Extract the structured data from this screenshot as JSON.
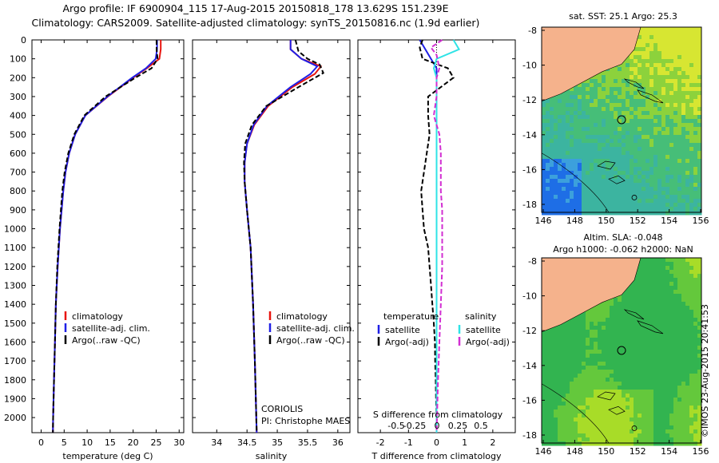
{
  "header": {
    "line1": "Argo profile: IF 6900904_115 17-Aug-2015 20150818_178 13.629S 151.239E",
    "line2": "Climatology: CARS2009. Satellite-adjusted climatology: synTS_20150816.nc (1.9d earlier)"
  },
  "map_top": {
    "title": "sat. SST: 25.1 Argo: 25.3",
    "x_ticks": [
      "146",
      "148",
      "150",
      "152",
      "154",
      "156"
    ],
    "y_ticks": [
      "-8",
      "-10",
      "-12",
      "-14",
      "-16",
      "-18"
    ]
  },
  "map_bottom": {
    "title1": "Altim. SLA: -0.048",
    "title2": "Argo h1000: -0.062 h2000: NaN",
    "x_ticks": [
      "146",
      "148",
      "150",
      "152",
      "154",
      "156"
    ],
    "y_ticks": [
      "-8",
      "-10",
      "-12",
      "-14",
      "-16",
      "-18"
    ]
  },
  "credit": "©IMOS 23-Aug-2015 20:41:53",
  "colors": {
    "climatology": "#e8140e",
    "satellite_adj": "#1f1fe6",
    "argo": "#000000",
    "satellite_s": "#2fe3e6",
    "argo_s": "#d22fd2",
    "land": "#f5b28c",
    "ocean": "#32cd64"
  },
  "chart_data": [
    {
      "type": "line",
      "xlabel": "temperature (deg C)",
      "ylabel": "",
      "xlim": [
        -2,
        31
      ],
      "ylim": [
        2080,
        0
      ],
      "x_ticks": [
        "0",
        "5",
        "10",
        "15",
        "20",
        "25",
        "30"
      ],
      "y_ticks": [
        "0",
        "100",
        "200",
        "300",
        "400",
        "500",
        "600",
        "700",
        "800",
        "900",
        "1000",
        "1100",
        "1200",
        "1300",
        "1400",
        "1500",
        "1600",
        "1700",
        "1800",
        "1900",
        "2000"
      ],
      "legend_position": "lower-left",
      "series": [
        {
          "name": "climatology",
          "depth": [
            0,
            50,
            100,
            150,
            200,
            300,
            400,
            500,
            600,
            700,
            800,
            1000,
            1200,
            1400,
            1600,
            1800,
            2000,
            2080
          ],
          "values": [
            26,
            26,
            25.7,
            23,
            20,
            14.5,
            9.6,
            7.4,
            6.1,
            5.3,
            4.8,
            4.1,
            3.6,
            3.2,
            3.0,
            2.8,
            2.6,
            2.55
          ]
        },
        {
          "name": "satellite-adj. clim.",
          "depth": [
            0,
            50,
            100,
            150,
            200,
            300,
            400,
            500,
            600,
            700,
            800,
            1000,
            1200,
            1400,
            1600,
            1800,
            2000,
            2080
          ],
          "values": [
            25.2,
            25.2,
            24.9,
            22.8,
            19.8,
            14.4,
            9.6,
            7.4,
            6.1,
            5.3,
            4.8,
            4.1,
            3.6,
            3.2,
            3.0,
            2.8,
            2.6,
            2.55
          ]
        },
        {
          "name": "Argo(..raw -QC)",
          "depth": [
            0,
            50,
            100,
            150,
            200,
            300,
            400,
            500,
            600,
            700,
            800,
            1000,
            1200,
            1400,
            1600,
            1800,
            2000,
            2080
          ],
          "values": [
            25.1,
            25.1,
            25.3,
            24,
            20.5,
            14.0,
            9.4,
            7.2,
            5.9,
            5.1,
            4.6,
            4.0,
            3.5,
            3.2,
            3.0,
            2.8,
            2.6,
            2.55
          ]
        }
      ]
    },
    {
      "type": "line",
      "xlabel": "salinity",
      "xlim": [
        33.6,
        36.2
      ],
      "ylim": [
        2080,
        0
      ],
      "x_ticks": [
        "34",
        "34.5",
        "35",
        "35.5",
        "36"
      ],
      "legend_position": "lower-left",
      "annotations": [
        "CORIOLIS",
        "PI: Christophe MAES"
      ],
      "series": [
        {
          "name": "climatology",
          "depth": [
            0,
            50,
            100,
            140,
            180,
            250,
            350,
            450,
            550,
            650,
            750,
            900,
            1100,
            1400,
            1700,
            2080
          ],
          "values": [
            35.22,
            35.22,
            35.4,
            35.72,
            35.62,
            35.25,
            34.85,
            34.62,
            34.5,
            34.46,
            34.46,
            34.5,
            34.56,
            34.6,
            34.63,
            34.66
          ]
        },
        {
          "name": "satellite-adj. clim.",
          "depth": [
            0,
            50,
            100,
            140,
            180,
            250,
            350,
            450,
            550,
            650,
            750,
            900,
            1100,
            1400,
            1700,
            2080
          ],
          "values": [
            35.22,
            35.22,
            35.4,
            35.66,
            35.55,
            35.22,
            34.83,
            34.61,
            34.5,
            34.46,
            34.46,
            34.5,
            34.56,
            34.6,
            34.63,
            34.66
          ]
        },
        {
          "name": "Argo(..raw -QC)",
          "depth": [
            0,
            60,
            100,
            130,
            175,
            250,
            350,
            450,
            550,
            650,
            750,
            900,
            1100,
            1400,
            1700,
            2080
          ],
          "values": [
            35.3,
            35.35,
            35.5,
            35.7,
            35.76,
            35.35,
            34.82,
            34.58,
            34.47,
            34.45,
            34.46,
            34.5,
            34.56,
            34.6,
            34.63,
            34.66
          ]
        }
      ]
    },
    {
      "type": "line",
      "xlabel": "T difference from climatology",
      "xlabel_top": "S difference from climatology",
      "xlim": [
        -2.8,
        2.8
      ],
      "ylim": [
        2080,
        0
      ],
      "x_ticks": [
        "-2",
        "-1",
        "0",
        "1",
        "2"
      ],
      "x_ticks_top": [
        "-0.5",
        "-0.25",
        "0",
        "0.25",
        "0.5"
      ],
      "legend_title_left": "temperature",
      "legend_title_right": "salinity",
      "series": [
        {
          "name": "satellite",
          "depth": [
            0,
            50,
            100,
            150,
            200,
            300,
            500,
            800,
            1200,
            2080
          ],
          "values": [
            -0.6,
            -0.4,
            -0.2,
            0.0,
            0.0,
            0.0,
            0.0,
            0.0,
            0.0,
            0.0
          ]
        },
        {
          "name": "Argo(-adj)",
          "depth": [
            0,
            40,
            100,
            150,
            200,
            300,
            400,
            500,
            600,
            700,
            800,
            900,
            1000,
            1100,
            1200,
            1300,
            1400,
            1500,
            1600,
            1700,
            1800,
            1900,
            2000,
            2080
          ],
          "values": [
            -0.5,
            -0.6,
            -0.5,
            0.4,
            0.6,
            -0.3,
            -0.3,
            -0.25,
            -0.35,
            -0.45,
            -0.55,
            -0.5,
            -0.45,
            -0.3,
            -0.25,
            -0.2,
            -0.15,
            -0.1,
            -0.06,
            -0.05,
            -0.03,
            -0.02,
            0.0,
            0.0
          ]
        },
        {
          "name": "satellite",
          "depth": [
            0,
            50,
            100,
            150,
            200,
            300,
            500,
            800,
            1200,
            2080
          ],
          "values": [
            0.6,
            0.8,
            0.0,
            -0.1,
            0.0,
            0.0,
            0.0,
            0.0,
            0.0,
            0.0
          ]
        },
        {
          "name": "Argo(-adj)",
          "depth": [
            0,
            40,
            80,
            150,
            200,
            300,
            400,
            500,
            600,
            700,
            800,
            900,
            1000,
            1200,
            1400,
            1600,
            1800,
            2080
          ],
          "values": [
            0.2,
            -0.2,
            0.0,
            0.1,
            0.0,
            0.0,
            -0.1,
            0.1,
            0.15,
            0.15,
            0.15,
            0.2,
            0.2,
            0.2,
            0.15,
            0.1,
            0.05,
            0.0
          ]
        }
      ]
    }
  ]
}
